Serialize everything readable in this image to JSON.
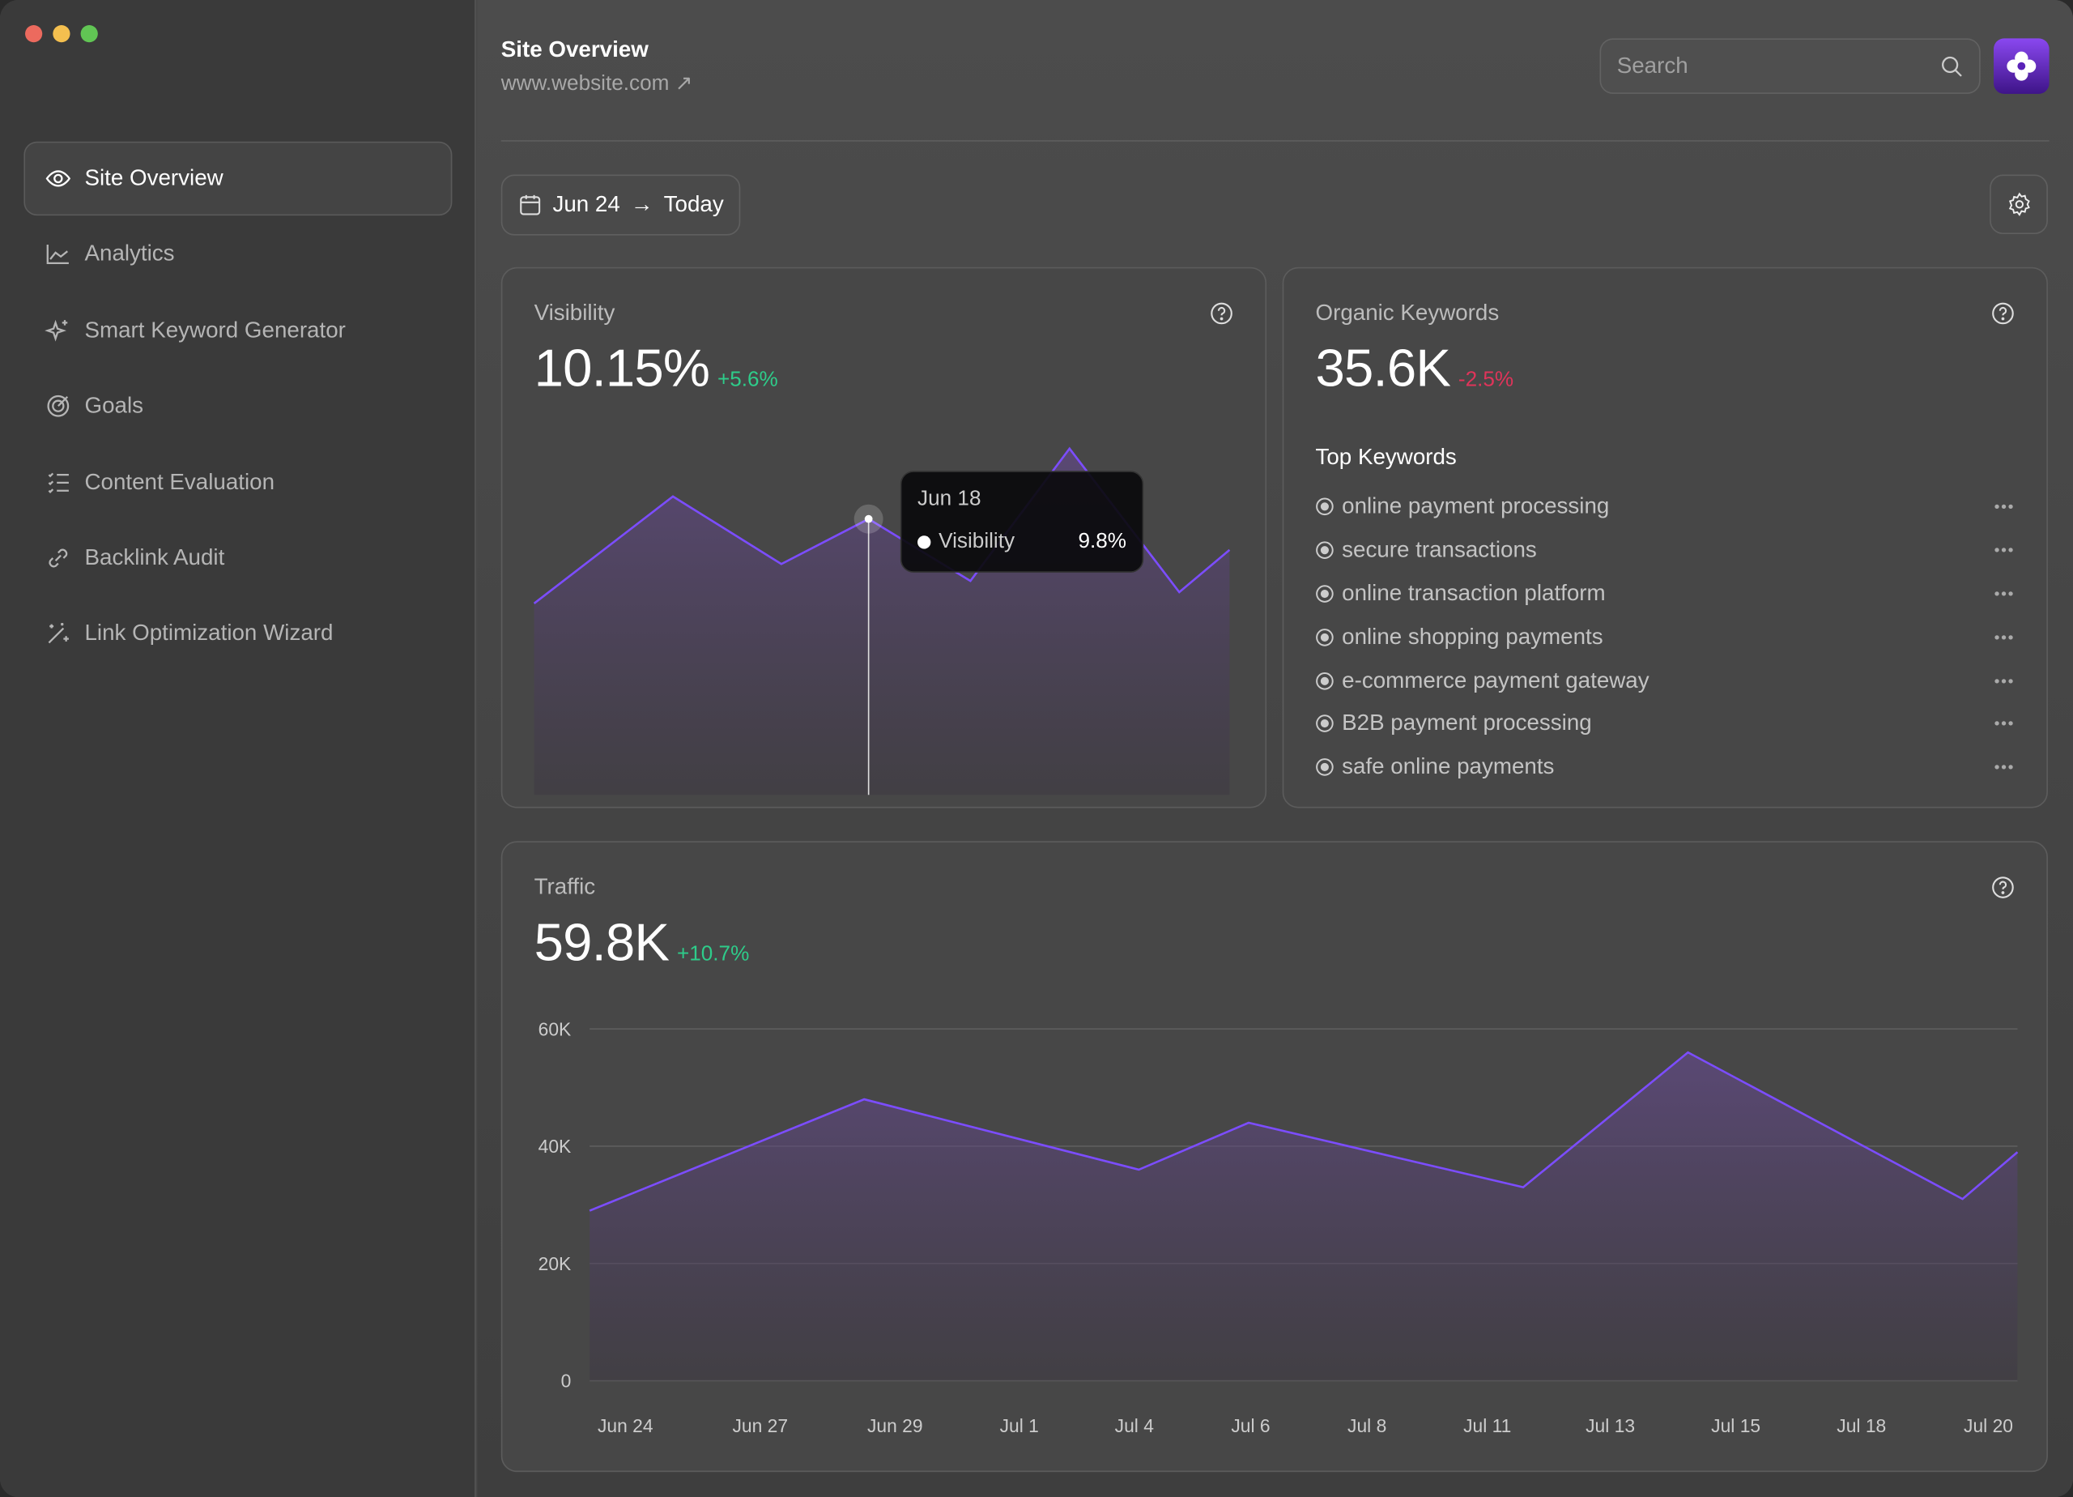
{
  "window": {
    "controls": [
      {
        "name": "close",
        "color": "#ec6a5e"
      },
      {
        "name": "minimize",
        "color": "#f4bf4f"
      },
      {
        "name": "maximize",
        "color": "#61c554"
      }
    ]
  },
  "sidebar": {
    "items": [
      {
        "label": "Site Overview",
        "icon": "eye-icon",
        "active": true
      },
      {
        "label": "Analytics",
        "icon": "chart-line-icon"
      },
      {
        "label": "Smart Keyword Generator",
        "icon": "sparkle-icon"
      },
      {
        "label": "Goals",
        "icon": "target-icon"
      },
      {
        "label": "Content Evaluation",
        "icon": "checklist-icon"
      },
      {
        "label": "Backlink Audit",
        "icon": "link-icon"
      },
      {
        "label": "Link Optimization Wizard",
        "icon": "magic-wand-icon"
      }
    ]
  },
  "header": {
    "title": "Site Overview",
    "url": "www.website.com",
    "search_placeholder": "Search"
  },
  "toolbar": {
    "date_from": "Jun 24",
    "date_to": "Today"
  },
  "colors": {
    "accent": "#7c4dff",
    "positive": "#2ecc8a",
    "negative": "#e0345a"
  },
  "visibility": {
    "label": "Visibility",
    "value": "10.15%",
    "delta": "+5.6%",
    "tooltip": {
      "date": "Jun 18",
      "series": "Visibility",
      "value": "9.8%"
    }
  },
  "organic": {
    "label": "Organic Keywords",
    "value": "35.6K",
    "delta": "-2.5%",
    "top_title": "Top Keywords",
    "keywords": [
      "online payment processing",
      "secure transactions",
      "online transaction platform",
      "online shopping payments",
      "e-commerce payment gateway",
      "B2B payment processing",
      "safe online payments"
    ]
  },
  "traffic": {
    "label": "Traffic",
    "value": "59.8K",
    "delta": "+10.7%"
  },
  "chart_data": [
    {
      "type": "area",
      "series": [
        {
          "name": "Visibility",
          "values": [
            6.8,
            10.6,
            8.2,
            9.8,
            7.6,
            12.3,
            7.2,
            8.7
          ]
        }
      ],
      "highlight_index": 3,
      "ylim": [
        0,
        14
      ]
    },
    {
      "type": "area",
      "ylim": [
        0,
        60000
      ],
      "grid": true,
      "yticks": [
        "60K",
        "40K",
        "20K",
        "0"
      ],
      "ytick_values": [
        60000,
        40000,
        20000,
        0
      ],
      "xticks": [
        "Jun 24",
        "Jun 27",
        "Jun 29",
        "Jul 1",
        "Jul 4",
        "Jul 6",
        "Jul 8",
        "Jul 11",
        "Jul 13",
        "Jul 15",
        "Jul 18",
        "Jul 20"
      ],
      "points": [
        {
          "x": "Jun 24",
          "y": 29000
        },
        {
          "x": "Jun 29",
          "y": 48000
        },
        {
          "x": "Jul 4",
          "y": 36000
        },
        {
          "x": "Jul 6",
          "y": 44000
        },
        {
          "x": "Jul 11",
          "y": 33000
        },
        {
          "x": "Jul 14",
          "y": 56000
        },
        {
          "x": "Jul 19",
          "y": 31000
        },
        {
          "x": "Jul 20",
          "y": 39000
        }
      ]
    }
  ]
}
